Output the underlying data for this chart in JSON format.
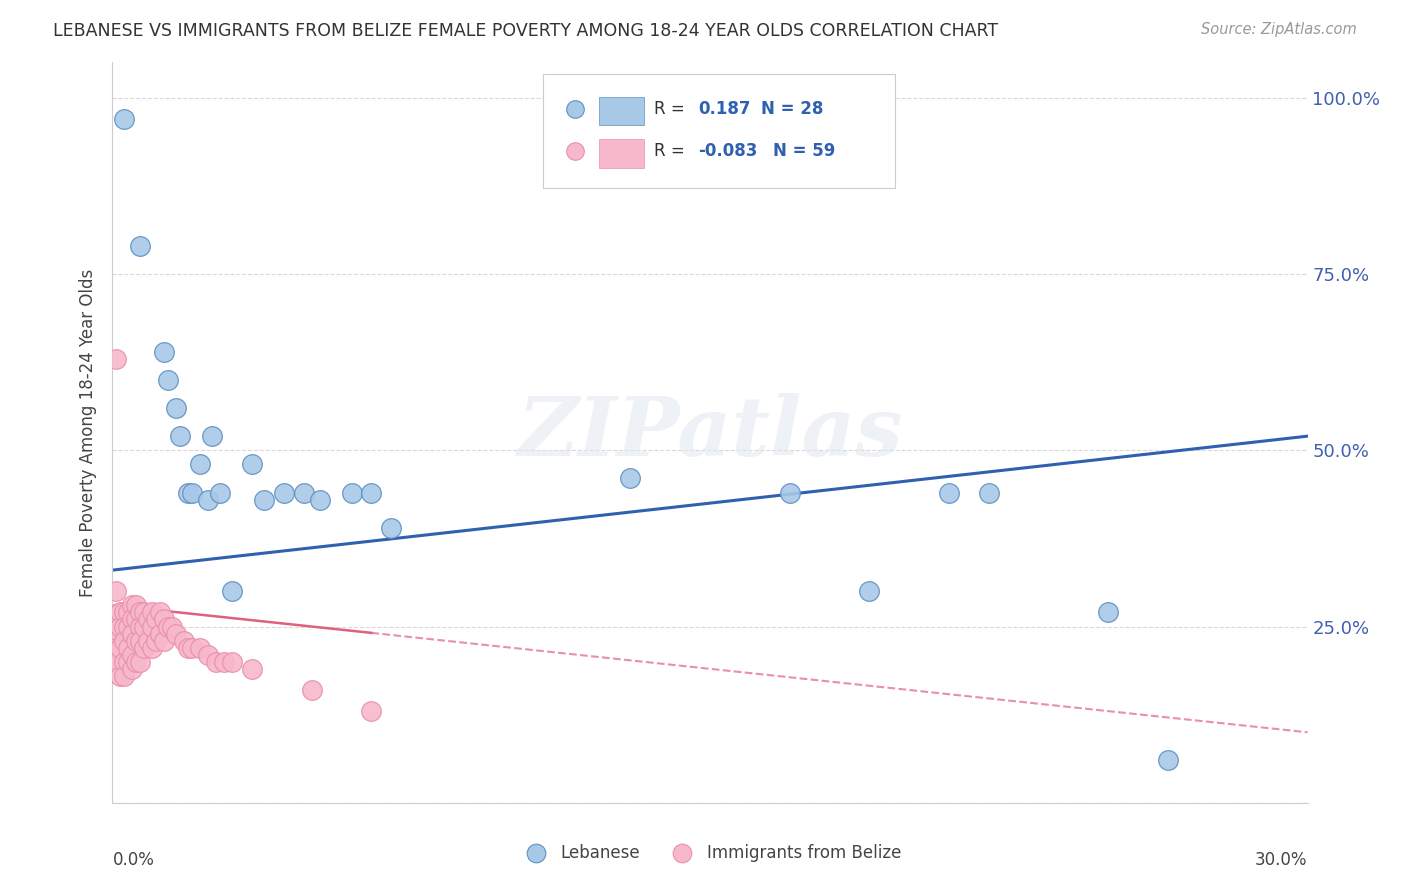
{
  "title": "LEBANESE VS IMMIGRANTS FROM BELIZE FEMALE POVERTY AMONG 18-24 YEAR OLDS CORRELATION CHART",
  "source": "Source: ZipAtlas.com",
  "ylabel": "Female Poverty Among 18-24 Year Olds",
  "y_ticks": [
    0.0,
    0.25,
    0.5,
    0.75,
    1.0
  ],
  "y_tick_labels": [
    "",
    "25.0%",
    "50.0%",
    "75.0%",
    "100.0%"
  ],
  "blue_dot_color": "#a8c8e8",
  "blue_dot_edge": "#6090c0",
  "pink_dot_color": "#f8b8cc",
  "pink_dot_edge": "#e890a8",
  "blue_line_color": "#3060b0",
  "pink_line_color": "#e06080",
  "background_color": "#ffffff",
  "grid_color": "#d8d8d8",
  "watermark_text": "ZIPatlas",
  "xlim": [
    0.0,
    0.3
  ],
  "ylim": [
    0.0,
    1.05
  ],
  "lebanese_x": [
    0.003,
    0.007,
    0.013,
    0.014,
    0.016,
    0.017,
    0.019,
    0.02,
    0.022,
    0.024,
    0.025,
    0.027,
    0.03,
    0.035,
    0.038,
    0.043,
    0.048,
    0.052,
    0.06,
    0.065,
    0.07,
    0.13,
    0.17,
    0.19,
    0.21,
    0.22,
    0.25,
    0.265
  ],
  "lebanese_y": [
    0.97,
    0.79,
    0.64,
    0.6,
    0.56,
    0.52,
    0.44,
    0.44,
    0.48,
    0.43,
    0.52,
    0.44,
    0.3,
    0.48,
    0.43,
    0.44,
    0.44,
    0.43,
    0.44,
    0.44,
    0.39,
    0.46,
    0.44,
    0.3,
    0.44,
    0.44,
    0.27,
    0.06
  ],
  "belize_x": [
    0.001,
    0.001,
    0.001,
    0.001,
    0.001,
    0.002,
    0.002,
    0.002,
    0.002,
    0.003,
    0.003,
    0.003,
    0.003,
    0.003,
    0.004,
    0.004,
    0.004,
    0.004,
    0.005,
    0.005,
    0.005,
    0.005,
    0.005,
    0.006,
    0.006,
    0.006,
    0.006,
    0.007,
    0.007,
    0.007,
    0.007,
    0.008,
    0.008,
    0.008,
    0.009,
    0.009,
    0.01,
    0.01,
    0.01,
    0.011,
    0.011,
    0.012,
    0.012,
    0.013,
    0.013,
    0.014,
    0.015,
    0.016,
    0.018,
    0.019,
    0.02,
    0.022,
    0.024,
    0.026,
    0.028,
    0.03,
    0.035,
    0.05,
    0.065
  ],
  "belize_y": [
    0.63,
    0.3,
    0.24,
    0.22,
    0.2,
    0.27,
    0.25,
    0.22,
    0.18,
    0.27,
    0.25,
    0.23,
    0.2,
    0.18,
    0.27,
    0.25,
    0.22,
    0.2,
    0.28,
    0.26,
    0.24,
    0.21,
    0.19,
    0.28,
    0.26,
    0.23,
    0.2,
    0.27,
    0.25,
    0.23,
    0.2,
    0.27,
    0.25,
    0.22,
    0.26,
    0.23,
    0.27,
    0.25,
    0.22,
    0.26,
    0.23,
    0.27,
    0.24,
    0.26,
    0.23,
    0.25,
    0.25,
    0.24,
    0.23,
    0.22,
    0.22,
    0.22,
    0.21,
    0.2,
    0.2,
    0.2,
    0.19,
    0.16,
    0.13
  ]
}
